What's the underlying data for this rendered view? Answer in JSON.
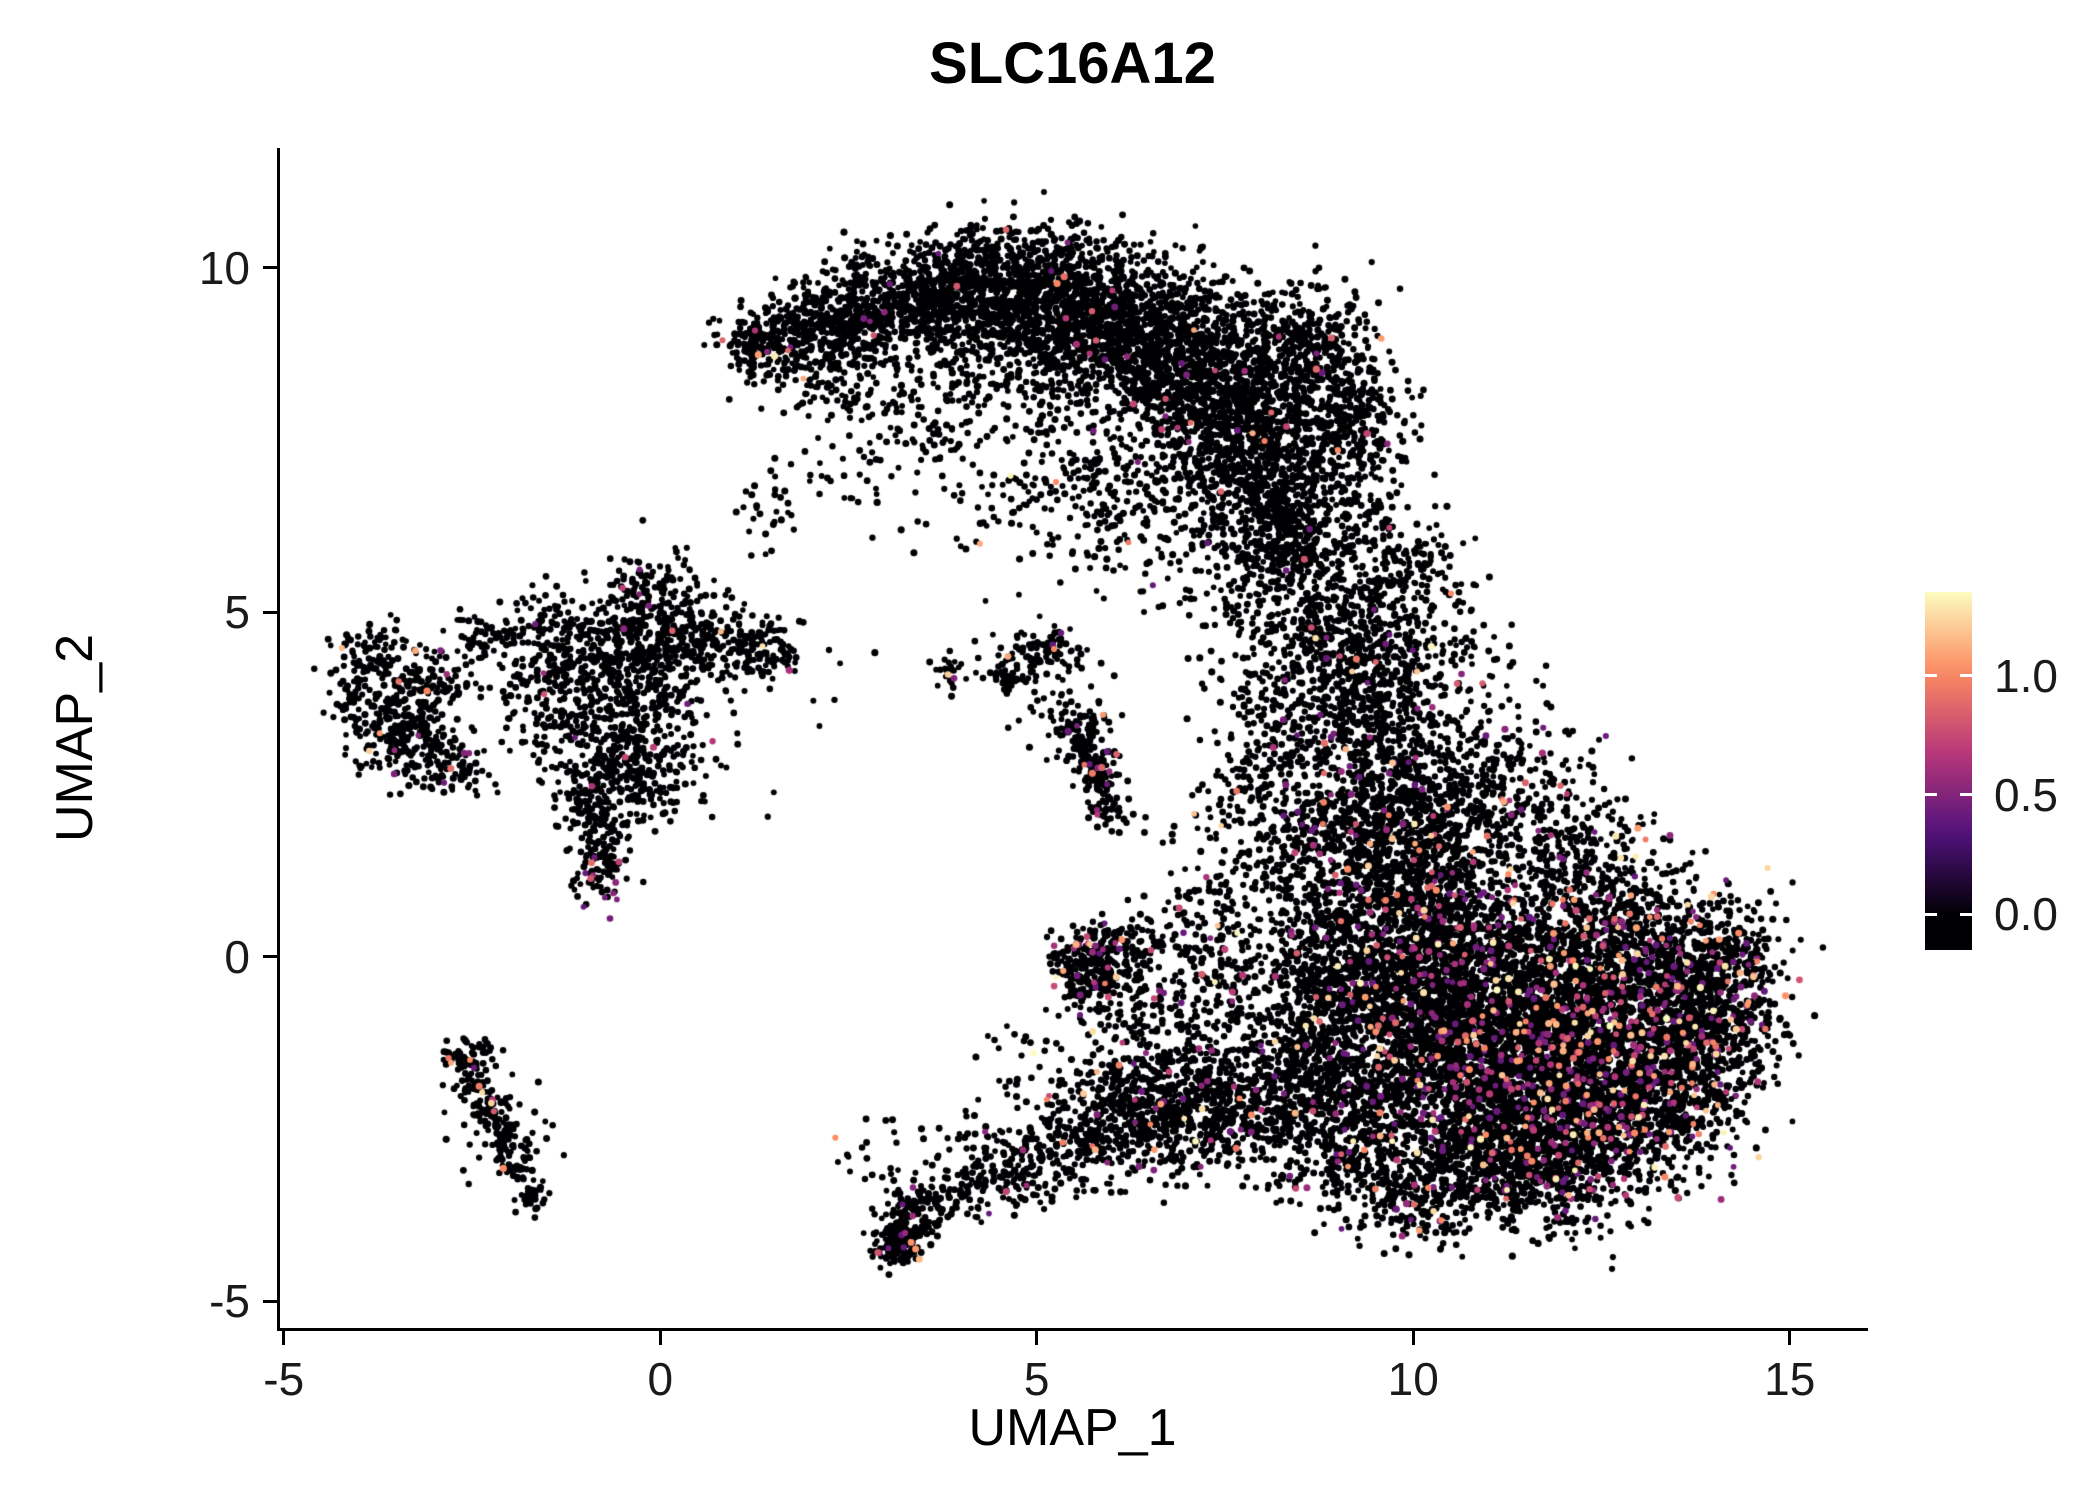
{
  "title": "SLC16A12",
  "axes": {
    "x": {
      "label": "UMAP_1",
      "ticks": [
        {
          "value": -5,
          "label": "-5"
        },
        {
          "value": 0,
          "label": "0"
        },
        {
          "value": 5,
          "label": "5"
        },
        {
          "value": 10,
          "label": "10"
        },
        {
          "value": 15,
          "label": "15"
        }
      ]
    },
    "y": {
      "label": "UMAP_2",
      "ticks": [
        {
          "value": 10,
          "label": "10"
        },
        {
          "value": 5,
          "label": "5"
        },
        {
          "value": 0,
          "label": "0"
        },
        {
          "value": -5,
          "label": "-5"
        }
      ]
    }
  },
  "legend": {
    "range": [
      -0.15,
      1.35
    ],
    "ticks": [
      {
        "value": 1.0,
        "label": "1.0"
      },
      {
        "value": 0.5,
        "label": "0.5"
      },
      {
        "value": 0.0,
        "label": "0.0"
      }
    ]
  },
  "chart_data": {
    "type": "scatter",
    "title": "SLC16A12",
    "xlabel": "UMAP_1",
    "ylabel": "UMAP_2",
    "xlim": [
      -5.05,
      16.0
    ],
    "ylim": [
      -5.39,
      11.74
    ],
    "grid": false,
    "legend_position": "right",
    "point_count_approx": 23000,
    "expression_value_range": [
      0,
      1.35
    ],
    "colormap": {
      "name": "magma",
      "stops": [
        [
          0,
          "#000004"
        ],
        [
          0.25,
          "#51127c"
        ],
        [
          0.5,
          "#b73779"
        ],
        [
          0.75,
          "#fc8961"
        ],
        [
          1,
          "#fcfdbf"
        ]
      ]
    },
    "clusters_format": "[center_x, center_y, sigma_x, sigma_y, n_points, expressed_fraction] — gaussian blob approximation of the UMAP point cloud; expressed points get values ~0.4-1.35, others 0",
    "clusters": [
      [
        1.6,
        8.95,
        0.35,
        0.3,
        200,
        0.012
      ],
      [
        2.4,
        9.2,
        0.45,
        0.35,
        320,
        0.012
      ],
      [
        3.3,
        9.5,
        0.5,
        0.4,
        400,
        0.012
      ],
      [
        4.2,
        9.7,
        0.55,
        0.42,
        450,
        0.012
      ],
      [
        5.1,
        9.65,
        0.6,
        0.45,
        520,
        0.012
      ],
      [
        6.0,
        9.3,
        0.6,
        0.5,
        600,
        0.012
      ],
      [
        6.8,
        8.7,
        0.6,
        0.55,
        650,
        0.012
      ],
      [
        7.5,
        8.0,
        0.55,
        0.6,
        600,
        0.012
      ],
      [
        8.0,
        7.1,
        0.5,
        0.55,
        500,
        0.012
      ],
      [
        8.3,
        6.2,
        0.45,
        0.5,
        350,
        0.012
      ],
      [
        8.4,
        9.0,
        0.5,
        0.4,
        250,
        0.012
      ],
      [
        8.9,
        8.3,
        0.45,
        0.5,
        250,
        0.012
      ],
      [
        9.2,
        7.5,
        0.4,
        0.5,
        200,
        0.015
      ],
      [
        4.3,
        8.6,
        0.7,
        0.5,
        150,
        0.01
      ],
      [
        3.2,
        7.9,
        0.6,
        0.6,
        100,
        0.01
      ],
      [
        2.3,
        8.4,
        0.4,
        0.4,
        80,
        0.01
      ],
      [
        5.3,
        8.9,
        0.7,
        0.6,
        300,
        0.012
      ],
      [
        6.3,
        6.6,
        0.6,
        0.6,
        200,
        0.012
      ],
      [
        5.5,
        7.0,
        0.6,
        0.5,
        90,
        0.01
      ],
      [
        8.6,
        5.3,
        0.4,
        0.5,
        140,
        0.02
      ],
      [
        8.9,
        4.5,
        0.35,
        0.45,
        110,
        0.02
      ],
      [
        1.2,
        8.8,
        0.15,
        0.25,
        60,
        0.01
      ],
      [
        9.4,
        6.1,
        0.35,
        0.4,
        80,
        0.02
      ],
      [
        9.3,
        3.6,
        0.5,
        0.5,
        260,
        0.05
      ],
      [
        9.8,
        2.6,
        0.6,
        0.55,
        380,
        0.06
      ],
      [
        9.5,
        1.6,
        0.55,
        0.5,
        350,
        0.06
      ],
      [
        10.3,
        1.8,
        0.6,
        0.6,
        350,
        0.06
      ],
      [
        10.1,
        0.6,
        0.7,
        0.6,
        500,
        0.07
      ],
      [
        9.6,
        -0.4,
        0.6,
        0.6,
        450,
        0.07
      ],
      [
        10.6,
        -0.3,
        0.7,
        0.65,
        600,
        0.08
      ],
      [
        11.4,
        -1.0,
        0.85,
        0.8,
        900,
        0.1
      ],
      [
        12.3,
        -0.5,
        0.85,
        0.75,
        850,
        0.1
      ],
      [
        12.6,
        -1.6,
        0.85,
        0.75,
        850,
        0.1
      ],
      [
        11.6,
        -2.2,
        0.8,
        0.7,
        800,
        0.1
      ],
      [
        10.6,
        -1.8,
        0.7,
        0.65,
        550,
        0.08
      ],
      [
        13.4,
        -0.6,
        0.6,
        0.6,
        450,
        0.09
      ],
      [
        14.0,
        0.1,
        0.4,
        0.45,
        220,
        0.08
      ],
      [
        13.1,
        -2.3,
        0.6,
        0.55,
        420,
        0.09
      ],
      [
        10.9,
        -3.0,
        0.6,
        0.45,
        350,
        0.08
      ],
      [
        11.9,
        -3.1,
        0.6,
        0.4,
        300,
        0.08
      ],
      [
        9.7,
        -1.6,
        0.6,
        0.6,
        320,
        0.06
      ],
      [
        8.9,
        0.3,
        0.5,
        0.55,
        220,
        0.04
      ],
      [
        8.8,
        -0.9,
        0.5,
        0.55,
        200,
        0.04
      ],
      [
        9.0,
        -2.2,
        0.55,
        0.55,
        220,
        0.05
      ],
      [
        9.3,
        -3.0,
        0.5,
        0.45,
        200,
        0.06
      ],
      [
        10.2,
        -3.6,
        0.5,
        0.3,
        150,
        0.06
      ],
      [
        13.9,
        -1.3,
        0.45,
        0.5,
        250,
        0.09
      ],
      [
        14.3,
        -0.4,
        0.3,
        0.5,
        150,
        0.08
      ],
      [
        9.3,
        4.4,
        0.4,
        0.45,
        160,
        0.03
      ],
      [
        9.6,
        5.3,
        0.35,
        0.45,
        120,
        0.02
      ],
      [
        10.3,
        4.4,
        0.5,
        0.5,
        120,
        0.04
      ],
      [
        10.1,
        5.7,
        0.35,
        0.35,
        60,
        0.02
      ],
      [
        11.1,
        2.7,
        0.6,
        0.55,
        200,
        0.05
      ],
      [
        11.9,
        1.5,
        0.6,
        0.6,
        250,
        0.07
      ],
      [
        12.6,
        0.6,
        0.6,
        0.55,
        300,
        0.08
      ],
      [
        8.4,
        1.5,
        0.45,
        0.6,
        150,
        0.03
      ],
      [
        8.3,
        2.8,
        0.4,
        0.5,
        120,
        0.03
      ],
      [
        -3.4,
        3.3,
        0.3,
        0.35,
        200,
        0.02
      ],
      [
        -3.1,
        3.9,
        0.3,
        0.3,
        110,
        0.02
      ],
      [
        -3.8,
        4.4,
        0.25,
        0.22,
        80,
        0.01
      ],
      [
        -4.1,
        3.7,
        0.18,
        0.25,
        50,
        0.01
      ],
      [
        -2.8,
        2.8,
        0.25,
        0.25,
        80,
        0.04
      ],
      [
        -1.6,
        3.9,
        0.45,
        0.4,
        130,
        0.01
      ],
      [
        -0.7,
        4.4,
        0.45,
        0.45,
        230,
        0.01
      ],
      [
        -0.3,
        3.5,
        0.45,
        0.5,
        240,
        0.015
      ],
      [
        -0.9,
        2.8,
        0.35,
        0.4,
        140,
        0.01
      ],
      [
        0.3,
        4.6,
        0.35,
        0.3,
        140,
        0.01
      ],
      [
        0.9,
        4.5,
        0.35,
        0.25,
        110,
        0.01
      ],
      [
        1.5,
        4.5,
        0.25,
        0.2,
        60,
        0.01
      ],
      [
        0.1,
        5.3,
        0.3,
        0.3,
        80,
        0.03
      ],
      [
        -0.4,
        5.1,
        0.2,
        0.35,
        70,
        0.01
      ],
      [
        -0.8,
        1.4,
        0.2,
        0.3,
        110,
        0.12
      ],
      [
        -0.9,
        2.1,
        0.25,
        0.3,
        80,
        0.04
      ],
      [
        -0.2,
        2.5,
        0.3,
        0.3,
        80,
        0.02
      ],
      [
        -0.5,
        3.8,
        1.1,
        1.0,
        140,
        0.01
      ],
      [
        -2.3,
        4.6,
        0.3,
        0.25,
        60,
        0.01
      ],
      [
        -1.4,
        4.8,
        0.3,
        0.3,
        60,
        0.01
      ],
      [
        -2.65,
        -1.5,
        0.12,
        0.12,
        40,
        0.05
      ],
      [
        -2.45,
        -1.9,
        0.12,
        0.15,
        40,
        0.08
      ],
      [
        -2.25,
        -2.3,
        0.12,
        0.15,
        40,
        0.05
      ],
      [
        -2.05,
        -2.7,
        0.12,
        0.15,
        40,
        0.03
      ],
      [
        -1.9,
        -3.1,
        0.1,
        0.15,
        35,
        0.02
      ],
      [
        -1.75,
        -3.5,
        0.1,
        0.15,
        30,
        0.02
      ],
      [
        -2.2,
        -2.4,
        0.35,
        0.45,
        50,
        0.03
      ],
      [
        -2.45,
        -1.35,
        0.2,
        0.1,
        20,
        0
      ],
      [
        4.9,
        4.4,
        0.25,
        0.2,
        55,
        0.02
      ],
      [
        5.35,
        4.45,
        0.2,
        0.15,
        40,
        0.02
      ],
      [
        4.6,
        4.05,
        0.14,
        0.12,
        30,
        0.08
      ],
      [
        5.55,
        3.35,
        0.18,
        0.18,
        55,
        0.06
      ],
      [
        5.7,
        2.95,
        0.15,
        0.18,
        60,
        0.06
      ],
      [
        5.82,
        2.55,
        0.13,
        0.18,
        50,
        0.06
      ],
      [
        5.9,
        2.2,
        0.12,
        0.15,
        35,
        0.06
      ],
      [
        5.3,
        3.6,
        0.45,
        0.45,
        40,
        0.02
      ],
      [
        3.85,
        4.1,
        0.15,
        0.12,
        25,
        0.1
      ],
      [
        5.65,
        -0.2,
        0.22,
        0.3,
        160,
        0.1
      ],
      [
        5.9,
        0.1,
        0.25,
        0.25,
        80,
        0.05
      ],
      [
        6.1,
        -0.5,
        0.3,
        0.3,
        70,
        0.05
      ],
      [
        6.4,
        0.2,
        0.3,
        0.3,
        50,
        0.04
      ],
      [
        6.8,
        -0.2,
        0.3,
        0.4,
        60,
        0.04
      ],
      [
        6.3,
        -1.1,
        0.35,
        0.4,
        60,
        0.04
      ],
      [
        3.15,
        -4.15,
        0.15,
        0.2,
        130,
        0.04
      ],
      [
        3.35,
        -3.75,
        0.18,
        0.2,
        90,
        0.03
      ],
      [
        3.8,
        -3.5,
        0.3,
        0.22,
        70,
        0.02
      ],
      [
        4.5,
        -3.25,
        0.35,
        0.25,
        80,
        0.02
      ],
      [
        5.2,
        -3.0,
        0.4,
        0.3,
        100,
        0.03
      ],
      [
        5.9,
        -2.7,
        0.45,
        0.32,
        150,
        0.04
      ],
      [
        6.6,
        -2.4,
        0.45,
        0.35,
        200,
        0.05
      ],
      [
        7.3,
        -2.2,
        0.45,
        0.4,
        220,
        0.05
      ],
      [
        8.0,
        -2.3,
        0.5,
        0.5,
        250,
        0.05
      ],
      [
        7.0,
        -1.6,
        0.4,
        0.4,
        120,
        0.04
      ],
      [
        6.2,
        -1.9,
        0.4,
        0.35,
        90,
        0.03
      ],
      [
        5.6,
        -2.2,
        0.35,
        0.3,
        60,
        0.03
      ],
      [
        4.4,
        -2.7,
        0.4,
        0.3,
        40,
        0.02
      ],
      [
        8.4,
        -1.4,
        0.5,
        0.6,
        180,
        0.05
      ],
      [
        7.8,
        -0.6,
        0.5,
        0.6,
        120,
        0.04
      ],
      [
        7.3,
        0.3,
        0.45,
        0.5,
        80,
        0.03
      ],
      [
        7.6,
        1.4,
        0.5,
        0.6,
        90,
        0.03
      ],
      [
        7.9,
        2.9,
        0.45,
        0.6,
        80,
        0.02
      ],
      [
        8.3,
        4.0,
        0.4,
        0.5,
        70,
        0.02
      ],
      [
        1.4,
        6.6,
        0.3,
        0.4,
        25,
        0
      ],
      [
        2.2,
        6.9,
        0.4,
        0.4,
        20,
        0
      ],
      [
        4.7,
        6.6,
        0.5,
        0.5,
        40,
        0.01
      ],
      [
        3.6,
        6.9,
        0.5,
        0.5,
        25,
        0
      ],
      [
        7.3,
        5.6,
        0.5,
        0.5,
        70,
        0.01
      ],
      [
        7.8,
        4.7,
        0.4,
        0.5,
        60,
        0.01
      ],
      [
        2.8,
        -2.9,
        0.3,
        0.4,
        25,
        0.02
      ],
      [
        5.0,
        -1.6,
        0.5,
        0.5,
        40,
        0.02
      ]
    ]
  }
}
